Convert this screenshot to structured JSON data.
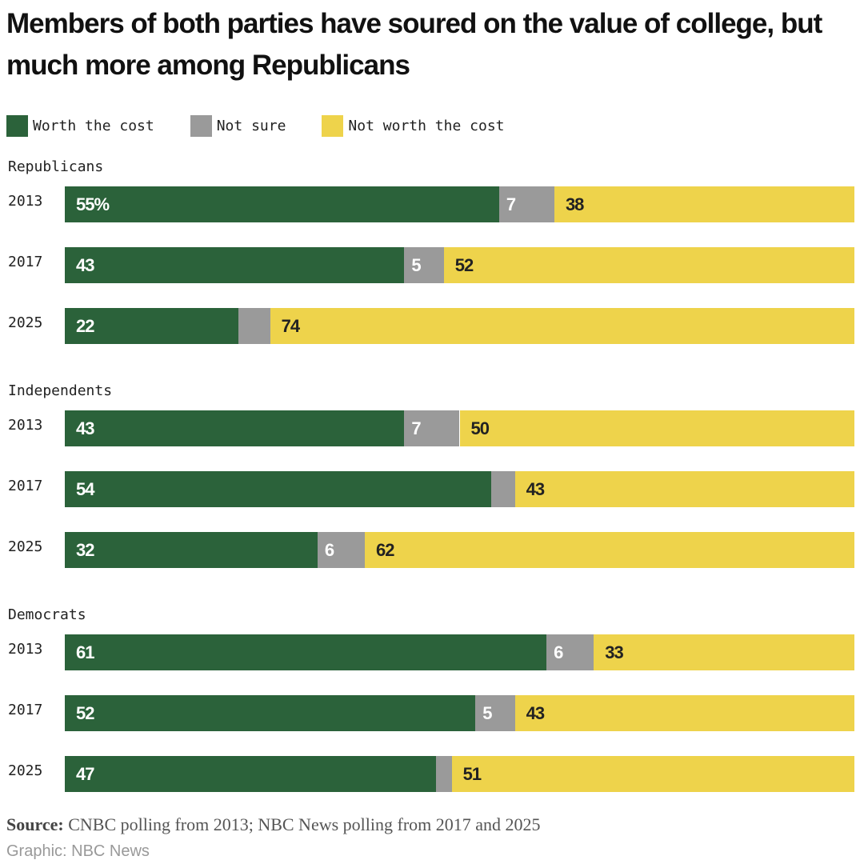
{
  "chart_data": {
    "type": "bar",
    "orientation": "horizontal-stacked-100",
    "title": "Members of both parties have soured on the value of college, but much more among Republicans",
    "legend": [
      {
        "name": "Worth the cost",
        "color": "#2b623a"
      },
      {
        "name": "Not sure",
        "color": "#9a9a9a"
      },
      {
        "name": "Not worth the cost",
        "color": "#eed34b"
      }
    ],
    "legend_placement": "top-left",
    "groups": [
      {
        "name": "Republicans",
        "rows": [
          {
            "year": "2013",
            "values": [
              55,
              7,
              38
            ],
            "labels": [
              "55%",
              "7",
              "38"
            ]
          },
          {
            "year": "2017",
            "values": [
              43,
              5,
              52
            ],
            "labels": [
              "43",
              "5",
              "52"
            ]
          },
          {
            "year": "2025",
            "values": [
              22,
              4,
              74
            ],
            "labels": [
              "22",
              "",
              "74"
            ]
          }
        ]
      },
      {
        "name": "Independents",
        "rows": [
          {
            "year": "2013",
            "values": [
              43,
              7,
              50
            ],
            "labels": [
              "43",
              "7",
              "50"
            ]
          },
          {
            "year": "2017",
            "values": [
              54,
              3,
              43
            ],
            "labels": [
              "54",
              "",
              "43"
            ]
          },
          {
            "year": "2025",
            "values": [
              32,
              6,
              62
            ],
            "labels": [
              "32",
              "6",
              "62"
            ]
          }
        ]
      },
      {
        "name": "Democrats",
        "rows": [
          {
            "year": "2013",
            "values": [
              61,
              6,
              33
            ],
            "labels": [
              "61",
              "6",
              "33"
            ]
          },
          {
            "year": "2017",
            "values": [
              52,
              5,
              43
            ],
            "labels": [
              "52",
              "5",
              "43"
            ]
          },
          {
            "year": "2025",
            "values": [
              47,
              2,
              51
            ],
            "labels": [
              "47",
              "",
              "51"
            ]
          }
        ]
      }
    ],
    "xlim": [
      0,
      100
    ]
  },
  "footer": {
    "source_label": "Source:",
    "source_text": " CNBC polling from 2013; NBC News polling from 2017 and 2025",
    "credit": "Graphic: NBC News"
  }
}
